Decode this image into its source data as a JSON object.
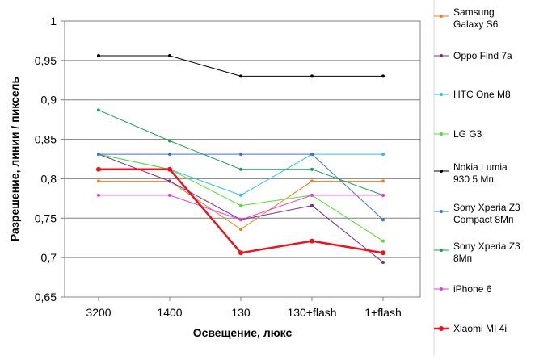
{
  "chart_data": {
    "type": "line",
    "title": "",
    "xlabel": "Освещение,  люкс",
    "ylabel": "Разрешение,  линии / пиксель",
    "categories": [
      "3200",
      "1400",
      "130",
      "130+flash",
      "1+flash"
    ],
    "ylim": [
      0.65,
      1
    ],
    "y_ticks": [
      "0,65",
      "0,7",
      "0,75",
      "0,8",
      "0,85",
      "0,9",
      "0,95",
      "1"
    ],
    "grid": "horizontal",
    "legend_position": "right",
    "series": [
      {
        "name": "Samsung Galaxy S6",
        "legend_lines": [
          "Samsung",
          "Galaxy S6"
        ],
        "color": "#e8821e",
        "values": [
          0.797,
          0.797,
          0.736,
          0.797,
          0.797
        ]
      },
      {
        "name": "Oppo Find 7a",
        "legend_lines": [
          "Oppo Find 7a"
        ],
        "color": "#7b2a8e",
        "values": [
          0.831,
          0.797,
          0.748,
          0.766,
          0.694
        ]
      },
      {
        "name": "HTC One M8",
        "legend_lines": [
          "HTC One M8"
        ],
        "color": "#2ec4e8",
        "values": [
          0.831,
          0.812,
          0.779,
          0.831,
          0.831
        ]
      },
      {
        "name": "LG G3",
        "legend_lines": [
          "LG G3"
        ],
        "color": "#55dd33",
        "values": [
          0.831,
          0.812,
          0.766,
          0.779,
          0.721
        ]
      },
      {
        "name": "Nokia Lumia 930 5 Мп",
        "legend_lines": [
          "Nokia Lumia",
          "930 5 Мп"
        ],
        "color": "#000000",
        "values": [
          0.956,
          0.956,
          0.93,
          0.93,
          0.93
        ]
      },
      {
        "name": "Sony Xperia Z3 Compact 8Мп",
        "legend_lines": [
          "Sony Xperia Z3",
          "Compact 8Мп"
        ],
        "color": "#3b73d9",
        "values": [
          0.831,
          0.831,
          0.831,
          0.831,
          0.748
        ]
      },
      {
        "name": "Sony Xperia Z3 8Мп",
        "legend_lines": [
          "Sony Xperia Z3",
          "8Мп"
        ],
        "color": "#1ea050",
        "values": [
          0.887,
          0.848,
          0.812,
          0.812,
          0.779
        ]
      },
      {
        "name": "iPhone 6",
        "legend_lines": [
          "iPhone 6"
        ],
        "color": "#e83ce0",
        "values": [
          0.779,
          0.779,
          0.748,
          0.779,
          0.779
        ]
      },
      {
        "name": "Xiaomi MI 4i",
        "legend_lines": [
          "Xiaomi MI 4i"
        ],
        "color": "#e8141e",
        "bold": true,
        "values": [
          0.812,
          0.812,
          0.706,
          0.721,
          0.706
        ]
      }
    ]
  }
}
